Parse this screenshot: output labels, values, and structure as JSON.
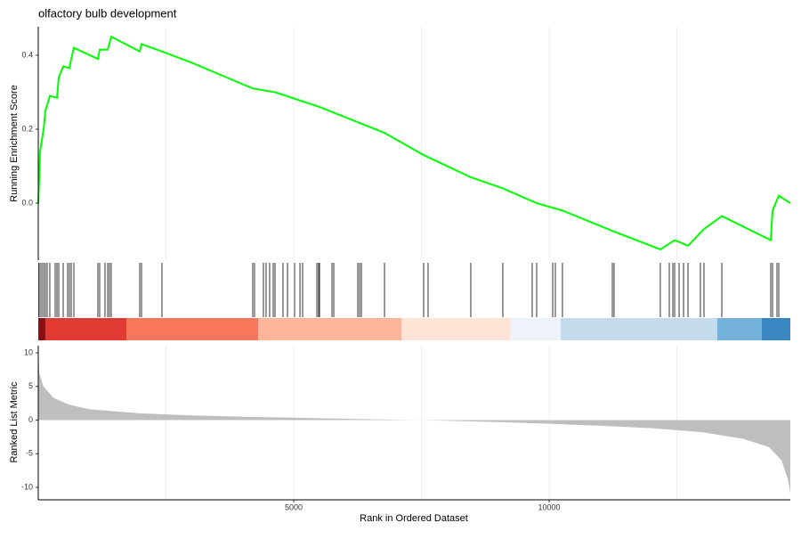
{
  "chart_data": [
    {
      "type": "line",
      "title": "olfactory bulb development",
      "ylabel": "Running Enrichment Score",
      "color": "#00ff00",
      "xlim": [
        0,
        14720
      ],
      "ylim": [
        -0.154,
        0.477
      ],
      "yticks": [
        {
          "value": -1e-09,
          "label": "0.0"
        },
        {
          "value": 0.2,
          "label": "0.2"
        },
        {
          "value": 0.4,
          "label": "0.4"
        }
      ],
      "x_grid": [
        2500,
        5000,
        7500,
        10000,
        12500
      ],
      "x": [
        0,
        35,
        105,
        139,
        226,
        366,
        401,
        488,
        610,
        645,
        697,
        1167,
        1202,
        1359,
        1428,
        1986,
        2021,
        2421,
        3000,
        4198,
        4634,
        5505,
        6324,
        6777,
        7543,
        8466,
        9093,
        9755,
        10260,
        11236,
        12176,
        12456,
        12717,
        12960,
        13030,
        13379,
        14337,
        14372,
        14494,
        14720
      ],
      "values": [
        0.0,
        0.14,
        0.2,
        0.25,
        0.29,
        0.285,
        0.34,
        0.37,
        0.365,
        0.39,
        0.42,
        0.39,
        0.415,
        0.415,
        0.45,
        0.41,
        0.43,
        0.41,
        0.38,
        0.31,
        0.3,
        0.26,
        0.215,
        0.19,
        0.13,
        0.07,
        0.04,
        0.0,
        -0.02,
        -0.075,
        -0.125,
        -0.1,
        -0.115,
        -0.08,
        -0.07,
        -0.035,
        -0.1,
        -0.02,
        0.02,
        0.0
      ]
    },
    {
      "type": "rug",
      "color": "#000000",
      "xlim": [
        0,
        14720
      ],
      "x": [
        10,
        35,
        70,
        105,
        139,
        174,
        226,
        331,
        366,
        401,
        488,
        575,
        610,
        645,
        697,
        1167,
        1202,
        1306,
        1359,
        1393,
        1428,
        1986,
        2021,
        2421,
        4198,
        4233,
        4407,
        4459,
        4529,
        4599,
        4634,
        4790,
        4878,
        5017,
        5122,
        5174,
        5453,
        5487,
        5505,
        5749,
        5784,
        6254,
        6289,
        6324,
        6777,
        7543,
        7630,
        8466,
        9093,
        9668,
        9755,
        10069,
        10121,
        10260,
        11236,
        11270,
        12176,
        12351,
        12421,
        12456,
        12543,
        12630,
        12717,
        12960,
        13030,
        13379,
        14337,
        14372,
        14459,
        14494
      ]
    },
    {
      "type": "area",
      "xlabel": "Rank in Ordered Dataset",
      "ylabel": "Ranked List Metric",
      "color": "#bebebe",
      "xlim": [
        0,
        14720
      ],
      "ylim": [
        -11.85,
        11.06
      ],
      "xticks": [
        5000,
        10000
      ],
      "x_grid": [
        2500,
        5000,
        7500,
        10000,
        12500
      ],
      "yticks": [
        -10,
        -5,
        0,
        5,
        10
      ],
      "x": [
        0,
        20,
        100,
        300,
        600,
        1000,
        2000,
        3000,
        4000,
        5000,
        6000,
        7000,
        7500,
        8000,
        9000,
        10000,
        11000,
        12000,
        13000,
        13800,
        14300,
        14550,
        14680,
        14720
      ],
      "values": [
        10.5,
        7,
        5,
        3.3,
        2.3,
        1.6,
        1.0,
        0.7,
        0.5,
        0.35,
        0.2,
        0.05,
        0,
        -0.1,
        -0.3,
        -0.55,
        -0.85,
        -1.2,
        -1.8,
        -2.8,
        -4,
        -6,
        -9,
        -11
      ]
    }
  ]
}
